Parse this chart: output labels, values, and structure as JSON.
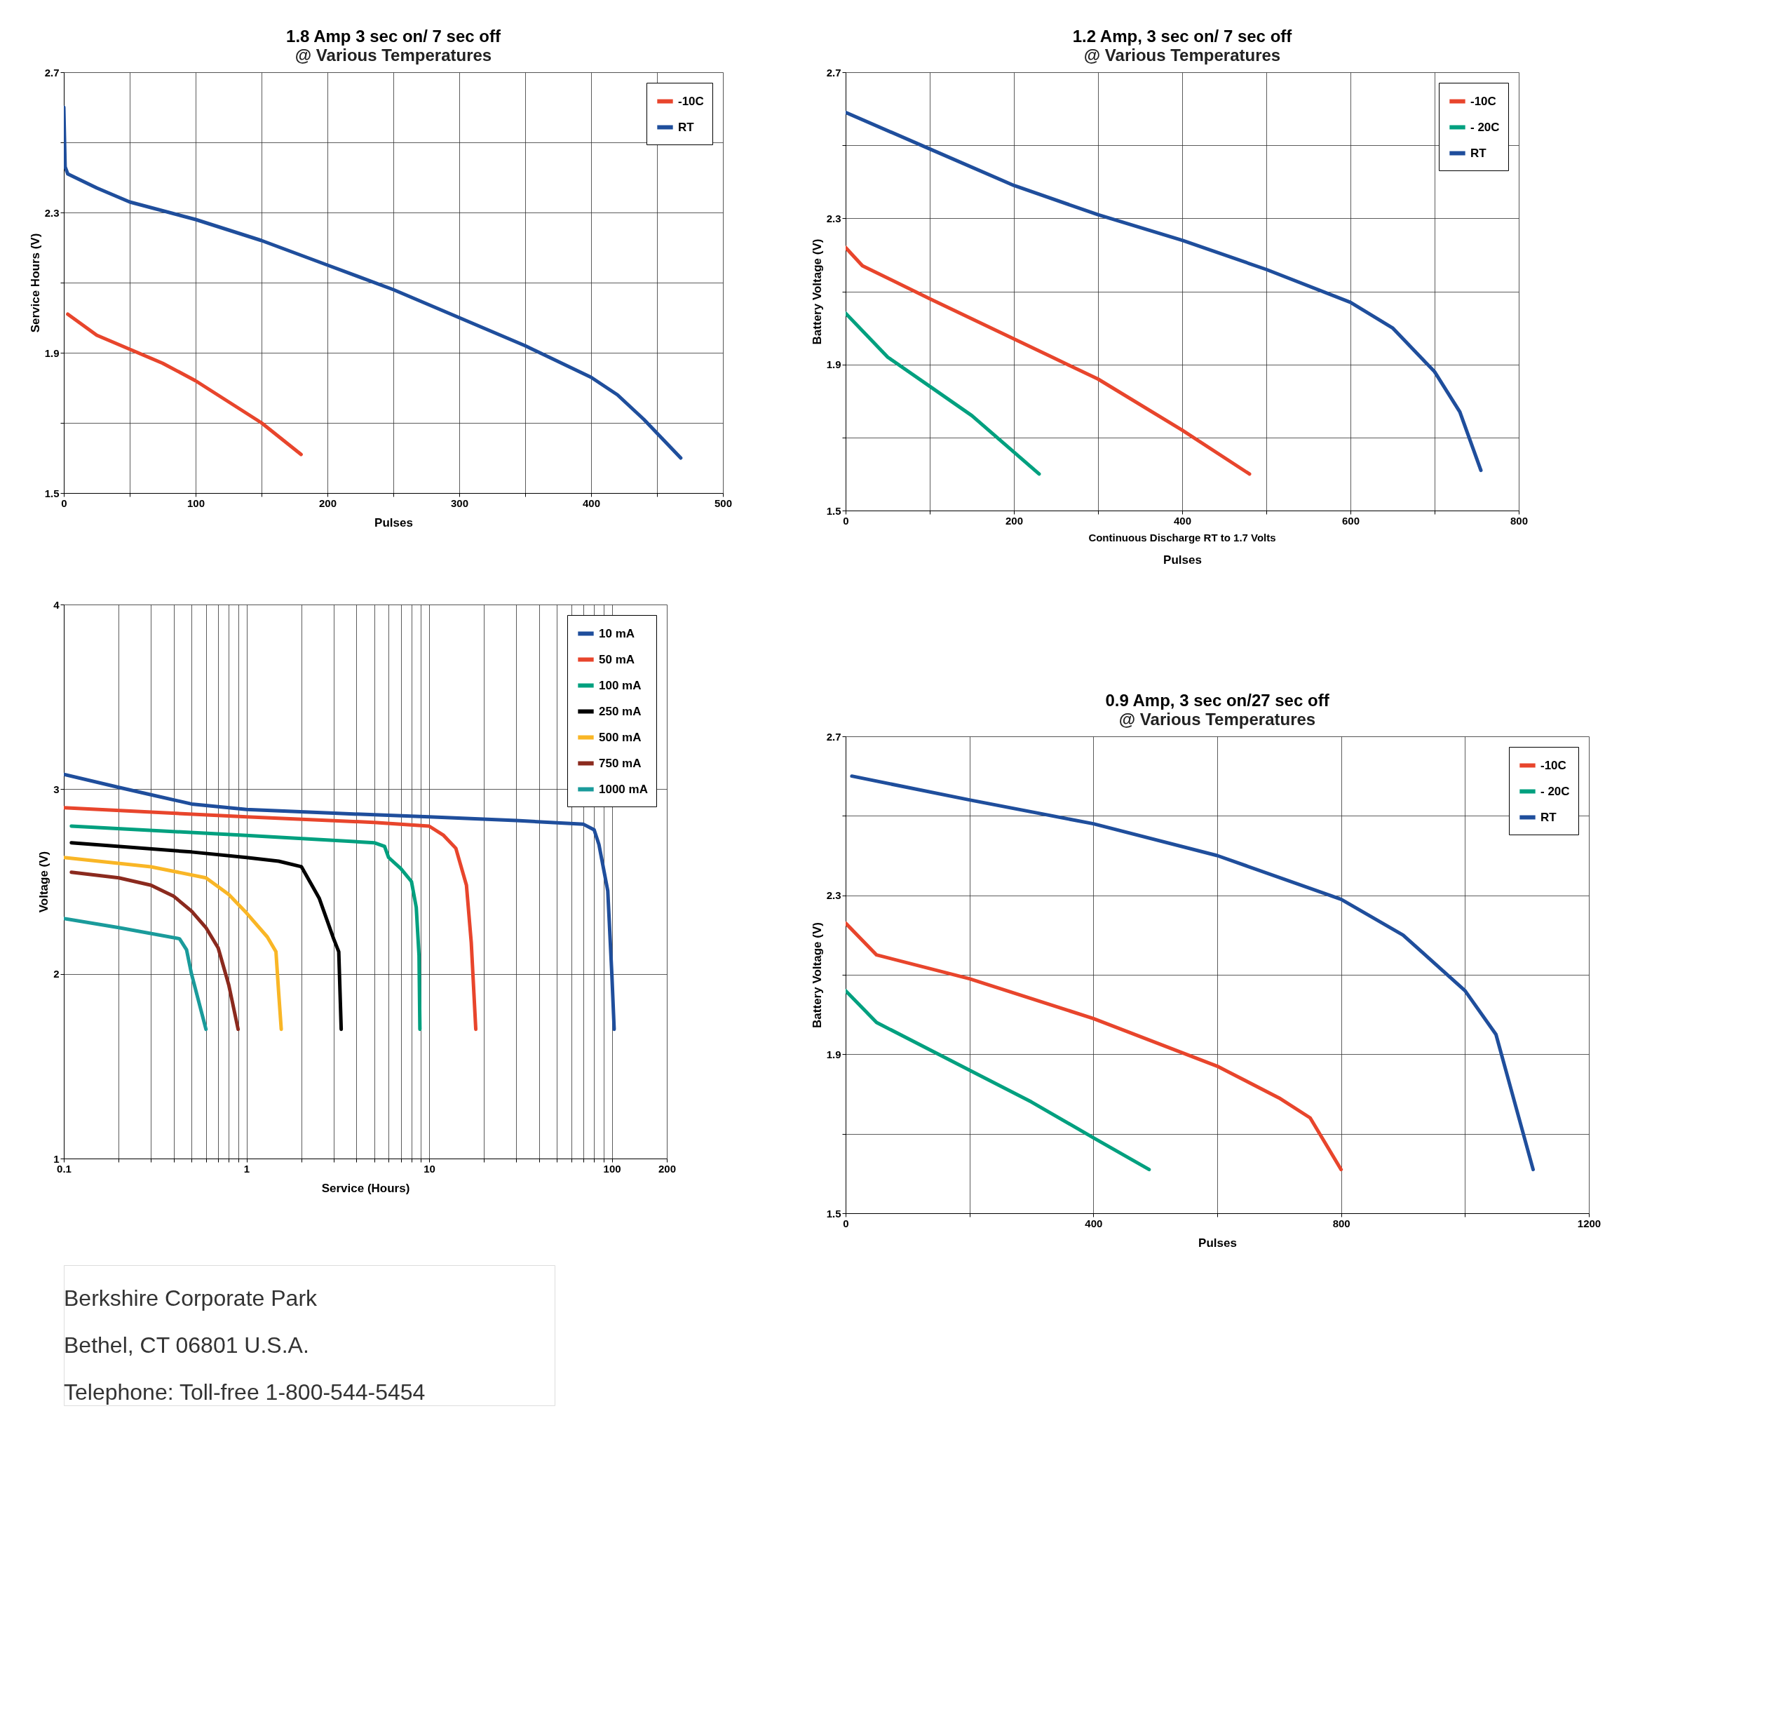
{
  "chart_data": [
    {
      "type": "line",
      "title": "1.8 Amp 3 sec on/ 7 sec off",
      "subtitle": "@ Various Temperatures",
      "xlabel": "Pulses",
      "ylabel": "Service Hours (V)",
      "xlim": [
        0,
        500
      ],
      "ylim": [
        1.5,
        2.7
      ],
      "xticks": [
        0,
        {
          "value": 50,
          "label": null
        },
        100,
        {
          "value": 150,
          "label": null
        },
        200,
        {
          "value": 250,
          "label": null
        },
        300,
        {
          "value": 350,
          "label": null
        },
        400,
        {
          "value": 450,
          "label": null
        },
        500
      ],
      "yticks": [
        1.5,
        {
          "value": 1.7,
          "label": null
        },
        1.9,
        {
          "value": 2.1,
          "label": null
        },
        2.3,
        {
          "value": 2.5,
          "label": null
        },
        2.7
      ],
      "grid": true,
      "legend": "top right",
      "line_style": "solid",
      "marker": "none",
      "series": [
        {
          "name": "-10C",
          "color": "#e8452c",
          "x": [
            3,
            25,
            50,
            75,
            100,
            125,
            150,
            180
          ],
          "values": [
            2.01,
            1.95,
            1.91,
            1.87,
            1.82,
            1.76,
            1.7,
            1.61
          ]
        },
        {
          "name": "RT",
          "color": "#1f4e9c",
          "x": [
            0,
            1,
            3,
            25,
            50,
            100,
            150,
            200,
            250,
            300,
            350,
            400,
            420,
            440,
            468
          ],
          "values": [
            2.6,
            2.43,
            2.41,
            2.37,
            2.33,
            2.28,
            2.22,
            2.15,
            2.08,
            2.0,
            1.92,
            1.83,
            1.78,
            1.71,
            1.6
          ]
        }
      ]
    },
    {
      "type": "line",
      "xlabel": "Service (Hours)",
      "ylabel": "Voltage (V)",
      "log": "x",
      "xlim": [
        0.1,
        200
      ],
      "ylim": [
        1,
        4
      ],
      "xticks": [
        0.1,
        {
          "value": 0.2,
          "label": null
        },
        {
          "value": 0.3,
          "label": null
        },
        {
          "value": 0.4,
          "label": null
        },
        {
          "value": 0.5,
          "label": null
        },
        {
          "value": 0.6,
          "label": null
        },
        {
          "value": 0.7,
          "label": null
        },
        {
          "value": 0.8,
          "label": null
        },
        {
          "value": 0.9,
          "label": null
        },
        1,
        {
          "value": 2,
          "label": null
        },
        {
          "value": 3,
          "label": null
        },
        {
          "value": 4,
          "label": null
        },
        {
          "value": 5,
          "label": null
        },
        {
          "value": 6,
          "label": null
        },
        {
          "value": 7,
          "label": null
        },
        {
          "value": 8,
          "label": null
        },
        {
          "value": 9,
          "label": null
        },
        10,
        {
          "value": 20,
          "label": null
        },
        {
          "value": 30,
          "label": null
        },
        {
          "value": 40,
          "label": null
        },
        {
          "value": 50,
          "label": null
        },
        {
          "value": 60,
          "label": null
        },
        {
          "value": 70,
          "label": null
        },
        {
          "value": 80,
          "label": null
        },
        {
          "value": 90,
          "label": null
        },
        100,
        200
      ],
      "yticks": [
        1,
        2,
        3,
        4
      ],
      "grid": true,
      "legend": "top right",
      "line_style": "solid",
      "marker": "none",
      "series": [
        {
          "name": "10 mA",
          "color": "#1f4e9c",
          "x": [
            0.1,
            0.2,
            0.3,
            0.5,
            1,
            3,
            10,
            30,
            70,
            80,
            85,
            95,
            100,
            103
          ],
          "values": [
            3.08,
            3.01,
            2.97,
            2.92,
            2.89,
            2.87,
            2.85,
            2.83,
            2.81,
            2.78,
            2.7,
            2.45,
            2.0,
            1.7
          ]
        },
        {
          "name": "50 mA",
          "color": "#e8452c",
          "x": [
            0.1,
            1,
            5,
            10,
            12,
            14,
            16,
            17,
            18
          ],
          "values": [
            2.9,
            2.85,
            2.82,
            2.8,
            2.75,
            2.68,
            2.48,
            2.17,
            1.7
          ]
        },
        {
          "name": "100 mA",
          "color": "#00a07f",
          "x": [
            0.11,
            1,
            5,
            5.7,
            6,
            7,
            8,
            8.5,
            8.8,
            8.9
          ],
          "values": [
            2.8,
            2.75,
            2.71,
            2.69,
            2.63,
            2.57,
            2.5,
            2.36,
            2.1,
            1.7
          ]
        },
        {
          "name": "250 mA",
          "color": "#000000",
          "x": [
            0.11,
            0.5,
            1,
            1.5,
            2,
            2.5,
            3,
            3.2,
            3.3
          ],
          "values": [
            2.71,
            2.66,
            2.63,
            2.61,
            2.58,
            2.41,
            2.19,
            2.12,
            1.7
          ]
        },
        {
          "name": "500 mA",
          "color": "#f9b626",
          "x": [
            0.1,
            0.3,
            0.6,
            0.8,
            1,
            1.3,
            1.45,
            1.5,
            1.55
          ],
          "values": [
            2.63,
            2.58,
            2.52,
            2.43,
            2.33,
            2.2,
            2.12,
            1.9,
            1.7
          ]
        },
        {
          "name": "750 mA",
          "color": "#8b2a1e",
          "x": [
            0.11,
            0.2,
            0.3,
            0.4,
            0.5,
            0.6,
            0.7,
            0.8,
            0.9
          ],
          "values": [
            2.55,
            2.52,
            2.48,
            2.42,
            2.34,
            2.25,
            2.14,
            1.94,
            1.7
          ]
        },
        {
          "name": "1000 mA",
          "color": "#1a9b9b",
          "x": [
            0.1,
            0.2,
            0.43,
            0.47,
            0.5,
            0.6
          ],
          "values": [
            2.3,
            2.25,
            2.19,
            2.13,
            2.0,
            1.7
          ]
        }
      ]
    },
    {
      "type": "other",
      "annotations": [
        "Berkshire Corporate Park",
        "Bethel, CT  06801 U.S.A.",
        "Telephone: Toll-free 1-800-544-5454"
      ]
    },
    {
      "type": "line",
      "title": "1.2 Amp, 3 sec on/ 7 sec off",
      "subtitle": "@ Various Temperatures",
      "xlabel": "Pulses",
      "ylabel": "Battery Voltage (V)",
      "annotations": [
        "Continuous Discharge RT to 1.7 Volts"
      ],
      "xlim": [
        0,
        800
      ],
      "ylim": [
        1.5,
        2.7
      ],
      "xticks": [
        0,
        {
          "value": 100,
          "label": null
        },
        200,
        {
          "value": 300,
          "label": null
        },
        400,
        {
          "value": 500,
          "label": null
        },
        600,
        {
          "value": 700,
          "label": null
        },
        800
      ],
      "yticks": [
        1.5,
        {
          "value": 1.7,
          "label": null
        },
        1.9,
        {
          "value": 2.1,
          "label": null
        },
        2.3,
        {
          "value": 2.5,
          "label": null
        },
        2.7
      ],
      "grid": true,
      "legend": "top right",
      "line_style": "solid",
      "marker": "none",
      "series": [
        {
          "name": "-10C",
          "color": "#e8452c",
          "x": [
            0,
            20,
            100,
            200,
            300,
            400,
            480
          ],
          "values": [
            2.22,
            2.17,
            2.08,
            1.97,
            1.86,
            1.72,
            1.6
          ]
        },
        {
          "name": "- 20C",
          "color": "#00a07f",
          "x": [
            0,
            50,
            100,
            150,
            230
          ],
          "values": [
            2.04,
            1.92,
            1.84,
            1.76,
            1.6
          ]
        },
        {
          "name": "RT",
          "color": "#1f4e9c",
          "x": [
            0,
            100,
            200,
            300,
            400,
            500,
            600,
            650,
            700,
            730,
            755
          ],
          "values": [
            2.59,
            2.49,
            2.39,
            2.31,
            2.24,
            2.16,
            2.07,
            2.0,
            1.88,
            1.77,
            1.61
          ]
        }
      ]
    },
    {
      "type": "line",
      "title": "0.9 Amp, 3 sec on/27 sec off",
      "subtitle": "@ Various Temperatures",
      "xlabel": "Pulses",
      "ylabel": "Battery Voltage (V)",
      "xlim": [
        0,
        1200
      ],
      "ylim": [
        1.5,
        2.7
      ],
      "xticks": [
        0,
        {
          "value": 200,
          "label": null
        },
        400,
        {
          "value": 600,
          "label": null
        },
        800,
        {
          "value": 1000,
          "label": null
        },
        1200
      ],
      "yticks": [
        1.5,
        {
          "value": 1.7,
          "label": null
        },
        1.9,
        {
          "value": 2.1,
          "label": null
        },
        2.3,
        {
          "value": 2.5,
          "label": null
        },
        2.7
      ],
      "grid": true,
      "legend": "top right",
      "line_style": "solid",
      "marker": "none",
      "series": [
        {
          "name": "-10C",
          "color": "#e8452c",
          "x": [
            0,
            50,
            200,
            400,
            600,
            700,
            750,
            800
          ],
          "values": [
            2.23,
            2.15,
            2.09,
            1.99,
            1.87,
            1.79,
            1.74,
            1.61
          ]
        },
        {
          "name": "- 20C",
          "color": "#00a07f",
          "x": [
            0,
            50,
            200,
            300,
            400,
            490
          ],
          "values": [
            2.06,
            1.98,
            1.86,
            1.78,
            1.69,
            1.61
          ]
        },
        {
          "name": "RT",
          "color": "#1f4e9c",
          "x": [
            10,
            200,
            400,
            600,
            800,
            900,
            1000,
            1050,
            1110
          ],
          "values": [
            2.6,
            2.54,
            2.48,
            2.4,
            2.29,
            2.2,
            2.06,
            1.95,
            1.61
          ]
        }
      ]
    }
  ]
}
